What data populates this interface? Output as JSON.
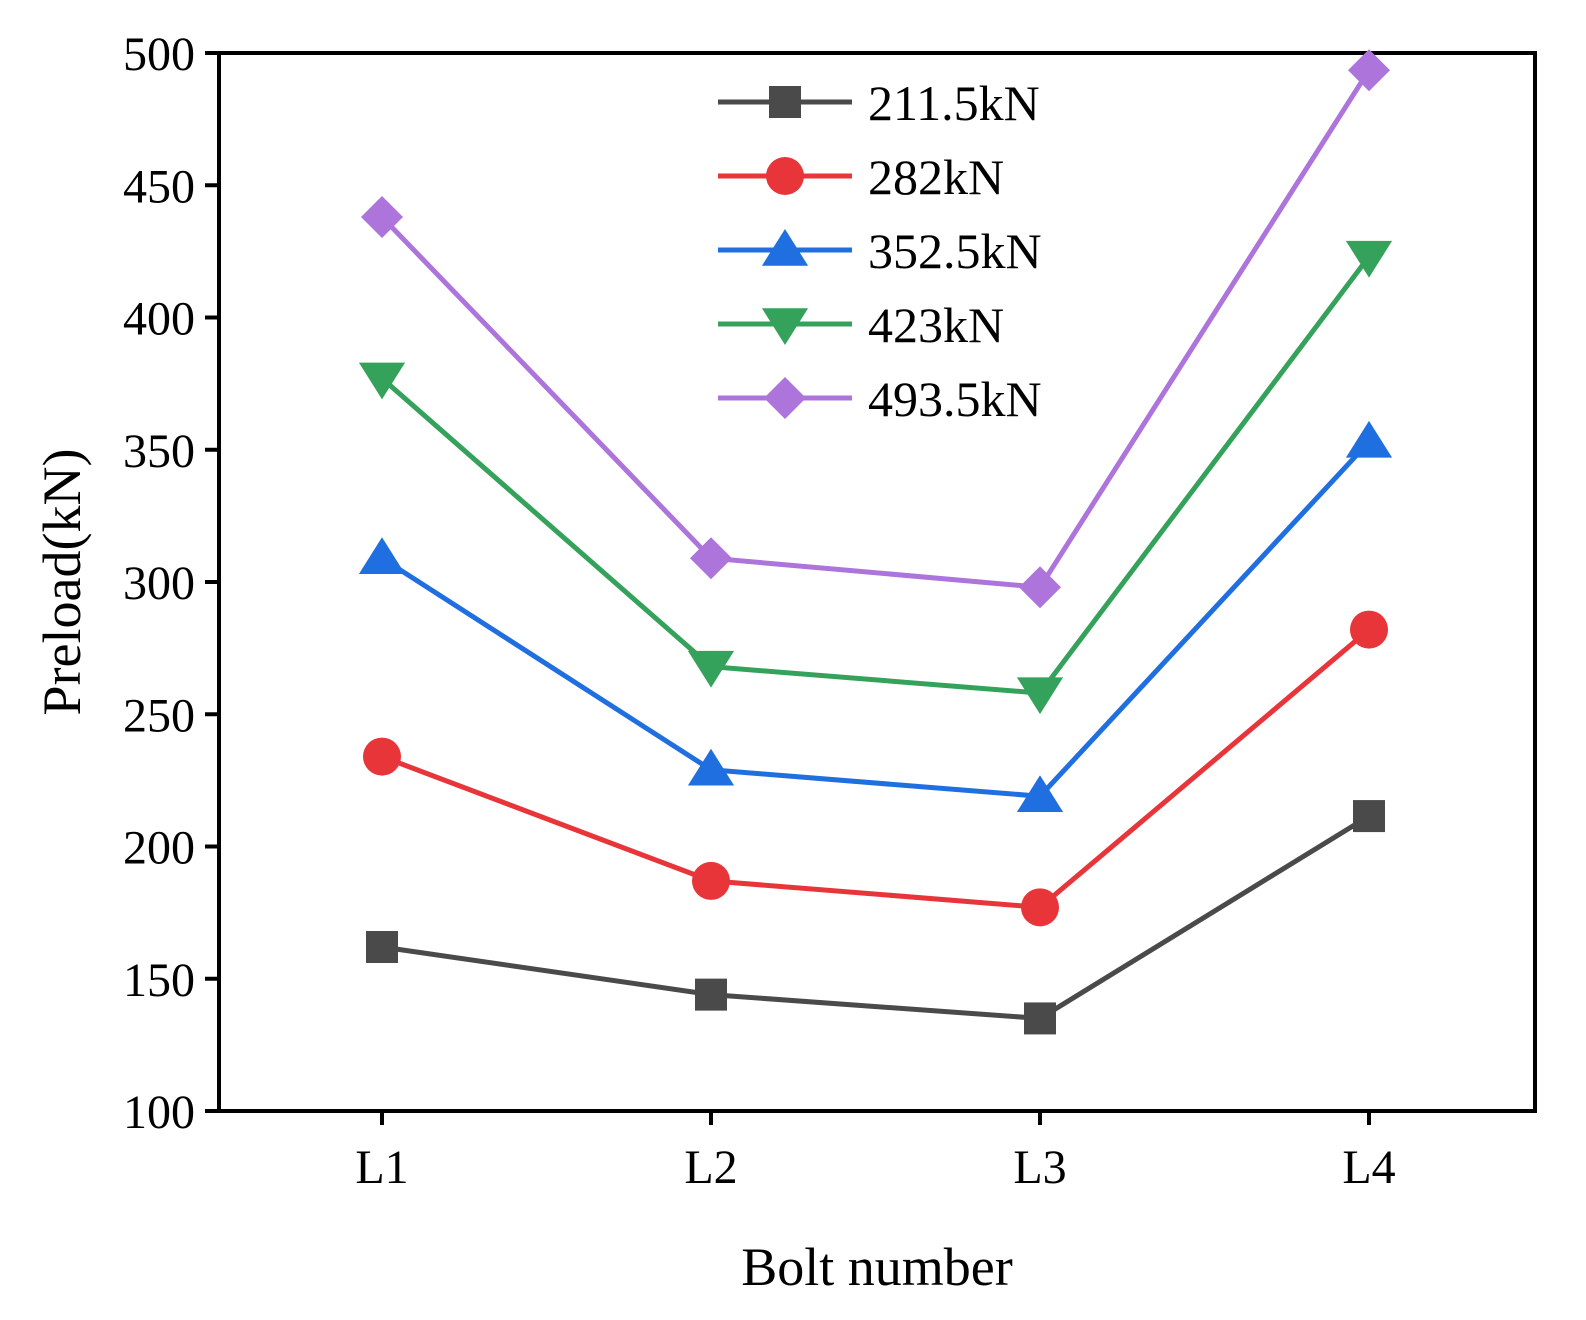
{
  "chart_data": {
    "type": "line",
    "title": "",
    "xlabel": "Bolt number",
    "ylabel": "Preload(kN)",
    "categories": [
      "L1",
      "L2",
      "L3",
      "L4"
    ],
    "ylim": [
      100,
      500
    ],
    "yticks": [
      "100",
      "150",
      "200",
      "250",
      "300",
      "350",
      "400",
      "450",
      "500"
    ],
    "grid": false,
    "legend_position": "top-center",
    "series": [
      {
        "name": "211.5kN",
        "color": "#4a4a4a",
        "marker": "square",
        "values": [
          162,
          144,
          135,
          211.5
        ]
      },
      {
        "name": "282kN",
        "color": "#e8353a",
        "marker": "circle",
        "values": [
          234,
          187,
          177,
          282
        ]
      },
      {
        "name": "352.5kN",
        "color": "#1f6fe0",
        "marker": "triangle-up",
        "values": [
          309,
          229,
          219,
          353
        ]
      },
      {
        "name": "423kN",
        "color": "#35a25c",
        "marker": "triangle-down",
        "values": [
          377,
          268,
          258,
          423
        ]
      },
      {
        "name": "493.5kN",
        "color": "#ad74dc",
        "marker": "diamond",
        "values": [
          438,
          309,
          298,
          493.5
        ]
      }
    ]
  }
}
